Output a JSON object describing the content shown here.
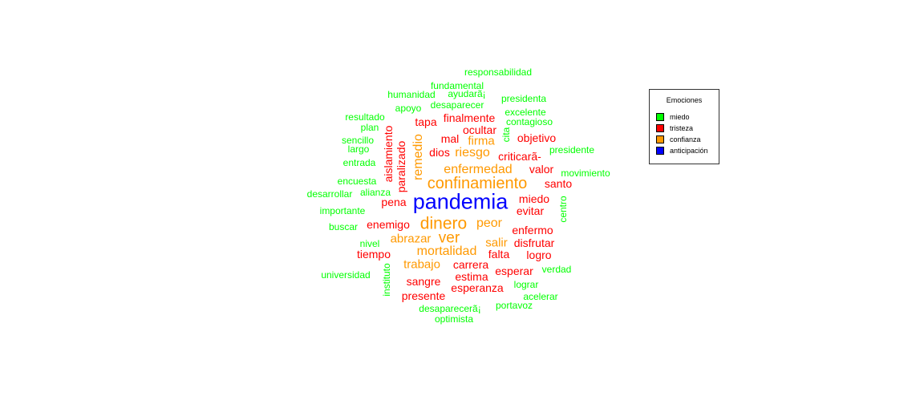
{
  "chart_data": {
    "type": "wordcloud",
    "legend": {
      "title": "Emociones",
      "placement": "right",
      "entries": [
        {
          "label": "miedo",
          "color": "#00FF00"
        },
        {
          "label": "tristeza",
          "color": "#FF0000"
        },
        {
          "label": "confianza",
          "color": "#FF9900"
        },
        {
          "label": "anticipación",
          "color": "#0000FF"
        }
      ]
    },
    "words": [
      {
        "text": "pandemia",
        "emotion": "anticipación",
        "weight": 27
      },
      {
        "text": "dinero",
        "emotion": "confianza",
        "weight": 21
      },
      {
        "text": "confinamiento",
        "emotion": "confianza",
        "weight": 20
      },
      {
        "text": "ver",
        "emotion": "confianza",
        "weight": 19
      },
      {
        "text": "enfermedad",
        "emotion": "confianza",
        "weight": 16
      },
      {
        "text": "peor",
        "emotion": "confianza",
        "weight": 16
      },
      {
        "text": "remedio",
        "emotion": "confianza",
        "weight": 16
      },
      {
        "text": "riesgo",
        "emotion": "confianza",
        "weight": 16
      },
      {
        "text": "mortalidad",
        "emotion": "confianza",
        "weight": 16
      },
      {
        "text": "abrazar",
        "emotion": "confianza",
        "weight": 15
      },
      {
        "text": "trabajo",
        "emotion": "confianza",
        "weight": 15
      },
      {
        "text": "salir",
        "emotion": "confianza",
        "weight": 15
      },
      {
        "text": "firma",
        "emotion": "confianza",
        "weight": 15
      },
      {
        "text": "esperanza",
        "emotion": "tristeza",
        "weight": 14
      },
      {
        "text": "carrera",
        "emotion": "tristeza",
        "weight": 14
      },
      {
        "text": "estima",
        "emotion": "tristeza",
        "weight": 14
      },
      {
        "text": "sangre",
        "emotion": "tristeza",
        "weight": 14
      },
      {
        "text": "presente",
        "emotion": "tristeza",
        "weight": 14
      },
      {
        "text": "tiempo",
        "emotion": "tristeza",
        "weight": 14
      },
      {
        "text": "enemigo",
        "emotion": "tristeza",
        "weight": 14
      },
      {
        "text": "pena",
        "emotion": "tristeza",
        "weight": 14
      },
      {
        "text": "paralizado",
        "emotion": "tristeza",
        "weight": 14
      },
      {
        "text": "aislamiento",
        "emotion": "tristeza",
        "weight": 14
      },
      {
        "text": "tapa",
        "emotion": "tristeza",
        "weight": 14
      },
      {
        "text": "finalmente",
        "emotion": "tristeza",
        "weight": 14
      },
      {
        "text": "ocultar",
        "emotion": "tristeza",
        "weight": 14
      },
      {
        "text": "mal",
        "emotion": "tristeza",
        "weight": 14
      },
      {
        "text": "dios",
        "emotion": "tristeza",
        "weight": 14
      },
      {
        "text": "objetivo",
        "emotion": "tristeza",
        "weight": 14
      },
      {
        "text": "criticarã-",
        "emotion": "tristeza",
        "weight": 14
      },
      {
        "text": "valor",
        "emotion": "tristeza",
        "weight": 14
      },
      {
        "text": "santo",
        "emotion": "tristeza",
        "weight": 14
      },
      {
        "text": "miedo",
        "emotion": "tristeza",
        "weight": 14
      },
      {
        "text": "evitar",
        "emotion": "tristeza",
        "weight": 14
      },
      {
        "text": "enfermo",
        "emotion": "tristeza",
        "weight": 14
      },
      {
        "text": "disfrutar",
        "emotion": "tristeza",
        "weight": 14
      },
      {
        "text": "falta",
        "emotion": "tristeza",
        "weight": 14
      },
      {
        "text": "logro",
        "emotion": "tristeza",
        "weight": 14
      },
      {
        "text": "esperar",
        "emotion": "tristeza",
        "weight": 14
      },
      {
        "text": "responsabilidad",
        "emotion": "miedo",
        "weight": 12
      },
      {
        "text": "fundamental",
        "emotion": "miedo",
        "weight": 12
      },
      {
        "text": "humanidad",
        "emotion": "miedo",
        "weight": 12
      },
      {
        "text": "ayudarã¡",
        "emotion": "miedo",
        "weight": 12
      },
      {
        "text": "presidenta",
        "emotion": "miedo",
        "weight": 12
      },
      {
        "text": "apoyo",
        "emotion": "miedo",
        "weight": 12
      },
      {
        "text": "desaparecer",
        "emotion": "miedo",
        "weight": 12
      },
      {
        "text": "excelente",
        "emotion": "miedo",
        "weight": 12
      },
      {
        "text": "resultado",
        "emotion": "miedo",
        "weight": 12
      },
      {
        "text": "contagioso",
        "emotion": "miedo",
        "weight": 12
      },
      {
        "text": "plan",
        "emotion": "miedo",
        "weight": 12
      },
      {
        "text": "cita",
        "emotion": "miedo",
        "weight": 12
      },
      {
        "text": "sencillo",
        "emotion": "miedo",
        "weight": 12
      },
      {
        "text": "largo",
        "emotion": "miedo",
        "weight": 12
      },
      {
        "text": "presidente",
        "emotion": "miedo",
        "weight": 12
      },
      {
        "text": "entrada",
        "emotion": "miedo",
        "weight": 12
      },
      {
        "text": "movimiento",
        "emotion": "miedo",
        "weight": 12
      },
      {
        "text": "encuesta",
        "emotion": "miedo",
        "weight": 12
      },
      {
        "text": "desarrollar",
        "emotion": "miedo",
        "weight": 12
      },
      {
        "text": "alianza",
        "emotion": "miedo",
        "weight": 12
      },
      {
        "text": "centro",
        "emotion": "miedo",
        "weight": 12
      },
      {
        "text": "importante",
        "emotion": "miedo",
        "weight": 12
      },
      {
        "text": "buscar",
        "emotion": "miedo",
        "weight": 12
      },
      {
        "text": "nivel",
        "emotion": "miedo",
        "weight": 12
      },
      {
        "text": "instituto",
        "emotion": "miedo",
        "weight": 12
      },
      {
        "text": "universidad",
        "emotion": "miedo",
        "weight": 12
      },
      {
        "text": "verdad",
        "emotion": "miedo",
        "weight": 12
      },
      {
        "text": "lograr",
        "emotion": "miedo",
        "weight": 12
      },
      {
        "text": "acelerar",
        "emotion": "miedo",
        "weight": 12
      },
      {
        "text": "desaparecerã¡",
        "emotion": "miedo",
        "weight": 12
      },
      {
        "text": "portavoz",
        "emotion": "miedo",
        "weight": 12
      },
      {
        "text": "optimista",
        "emotion": "miedo",
        "weight": 12
      }
    ]
  }
}
